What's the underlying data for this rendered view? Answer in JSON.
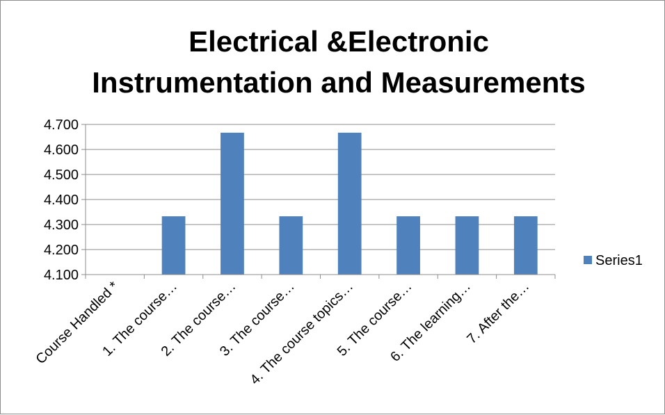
{
  "chart_data": {
    "type": "bar",
    "title_lines": [
      "Electrical &Electronic",
      "Instrumentation and Measurements"
    ],
    "categories": [
      "Course Handled *",
      "1. The course…",
      "2. The course…",
      "3. The course…",
      "4. The course topics…",
      "5. The course…",
      "6. The learning…",
      "7. After the…"
    ],
    "series": [
      {
        "name": "Series1",
        "values": [
          null,
          4.333,
          4.667,
          4.333,
          4.667,
          4.333,
          4.333,
          4.333
        ],
        "color": "#4f81bd"
      }
    ],
    "ylim": [
      4.1,
      4.7
    ],
    "yticks": [
      "4.100",
      "4.200",
      "4.300",
      "4.400",
      "4.500",
      "4.600",
      "4.700"
    ],
    "grid": true,
    "legend_position": "right"
  }
}
